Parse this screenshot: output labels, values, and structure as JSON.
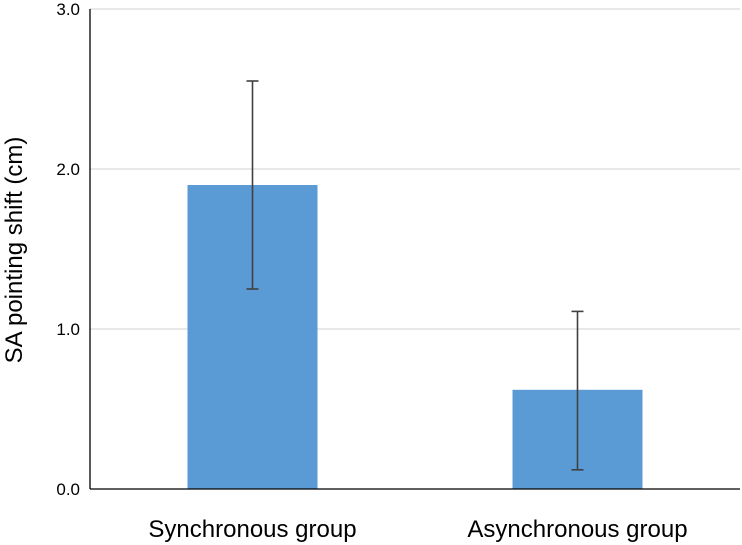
{
  "chart_data": {
    "type": "bar",
    "title": "",
    "xlabel": "",
    "ylabel": "SA pointing shift (cm)",
    "categories": [
      "Synchronous group",
      "Asynchronous group"
    ],
    "values": [
      1.9,
      0.62
    ],
    "error_low": [
      1.25,
      0.12
    ],
    "error_high": [
      2.55,
      1.11
    ],
    "ylim": [
      0,
      3
    ],
    "yticks": [
      0,
      1,
      2,
      3
    ],
    "ytick_labels": [
      "0.0",
      "1.0",
      "2.0",
      "3.0"
    ],
    "grid": true,
    "legend": "none",
    "colors": {
      "bar": "#5b9bd5",
      "error_bar": "#404040",
      "grid": "#d9d9d9",
      "axis": "#000000"
    }
  }
}
